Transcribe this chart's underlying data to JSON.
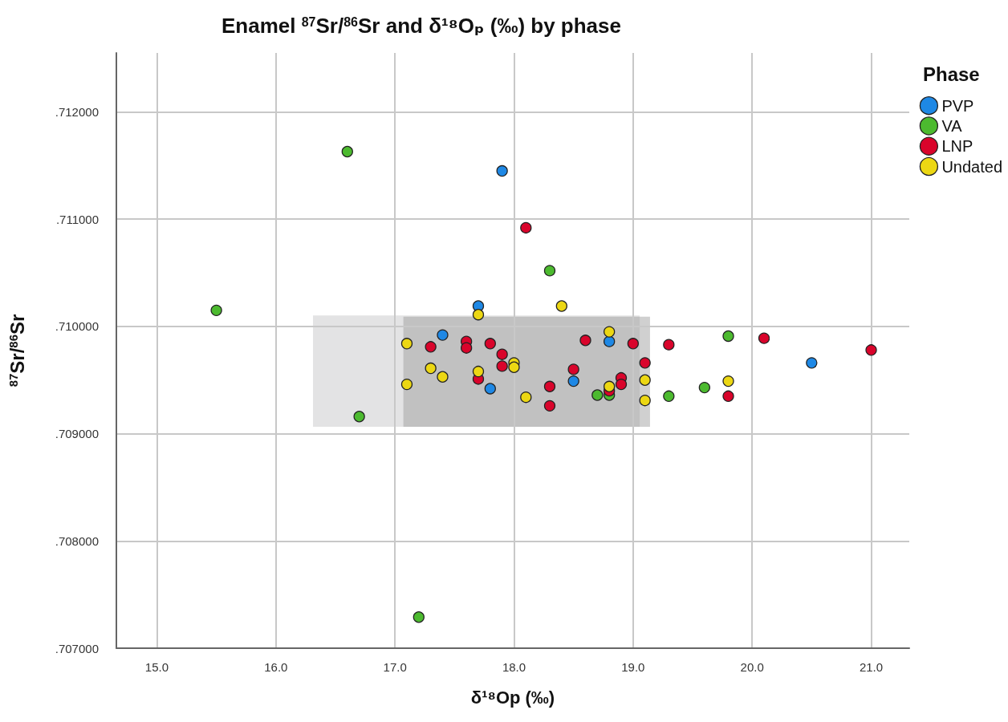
{
  "chart_data": {
    "type": "scatter",
    "title": "Enamel $^{87}$Sr/$^{86}$Sr and δ¹⁸Oₚ (‰) by phase",
    "xlabel": "δ¹⁸Op (‰)",
    "ylabel": "$^{87}$Sr/$^{86}$Sr",
    "legend_title": "Phase",
    "xlim": [
      14.66,
      21.32
    ],
    "ylim": [
      0.707,
      0.71255
    ],
    "xticks": [
      {
        "value": 15,
        "label": "15.0"
      },
      {
        "value": 16,
        "label": "16.0"
      },
      {
        "value": 17,
        "label": "17.0"
      },
      {
        "value": 18,
        "label": "18.0"
      },
      {
        "value": 19,
        "label": "19.0"
      },
      {
        "value": 20,
        "label": "20.0"
      },
      {
        "value": 21,
        "label": "21.0"
      }
    ],
    "yticks": [
      {
        "value": 0.707,
        "label": ".707000"
      },
      {
        "value": 0.708,
        "label": ".708000"
      },
      {
        "value": 0.709,
        "label": ".709000"
      },
      {
        "value": 0.71,
        "label": ".710000"
      },
      {
        "value": 0.711,
        "label": ".711000"
      },
      {
        "value": 0.712,
        "label": ".712000"
      }
    ],
    "grid": true,
    "legend": "top right",
    "marker": "circle",
    "series": [
      {
        "name": "PVP",
        "color": "#1e88e5",
        "x": [
          17.9,
          17.7,
          17.4,
          17.8,
          18.5,
          18.8,
          20.5
        ],
        "values": [
          0.71145,
          0.71019,
          0.70992,
          0.70942,
          0.70949,
          0.70986,
          0.70966
        ]
      },
      {
        "name": "VA",
        "color": "#4cba2f",
        "x": [
          16.6,
          15.5,
          16.7,
          17.2,
          18.3,
          19.8,
          19.3,
          19.6,
          18.7,
          18.8
        ],
        "values": [
          0.71163,
          0.71015,
          0.70916,
          0.70729,
          0.71052,
          0.70991,
          0.70935,
          0.70943,
          0.70936,
          0.70936
        ]
      },
      {
        "name": "LNP",
        "color": "#d9042b",
        "x": [
          18.1,
          21.0,
          20.1,
          19.3,
          19.1,
          19.8,
          17.3,
          17.6,
          17.6,
          17.8,
          17.9,
          17.9,
          17.7,
          18.3,
          18.3,
          18.5,
          18.6,
          18.8,
          18.9,
          18.9,
          19.0
        ],
        "values": [
          0.71092,
          0.70978,
          0.70989,
          0.70983,
          0.70966,
          0.70935,
          0.70981,
          0.70986,
          0.7098,
          0.70984,
          0.70974,
          0.70963,
          0.70951,
          0.70944,
          0.70926,
          0.7096,
          0.70987,
          0.7094,
          0.70952,
          0.70946,
          0.70984
        ]
      },
      {
        "name": "Undated",
        "color": "#ecd713",
        "x": [
          17.1,
          17.1,
          17.3,
          17.4,
          17.7,
          17.7,
          18.0,
          18.0,
          18.1,
          18.8,
          18.8,
          18.4,
          19.1,
          19.1,
          19.8
        ],
        "values": [
          0.70984,
          0.70946,
          0.70961,
          0.70953,
          0.71011,
          0.70958,
          0.70966,
          0.70962,
          0.70934,
          0.70995,
          0.70944,
          0.71019,
          0.7095,
          0.70931,
          0.70949
        ]
      }
    ]
  }
}
